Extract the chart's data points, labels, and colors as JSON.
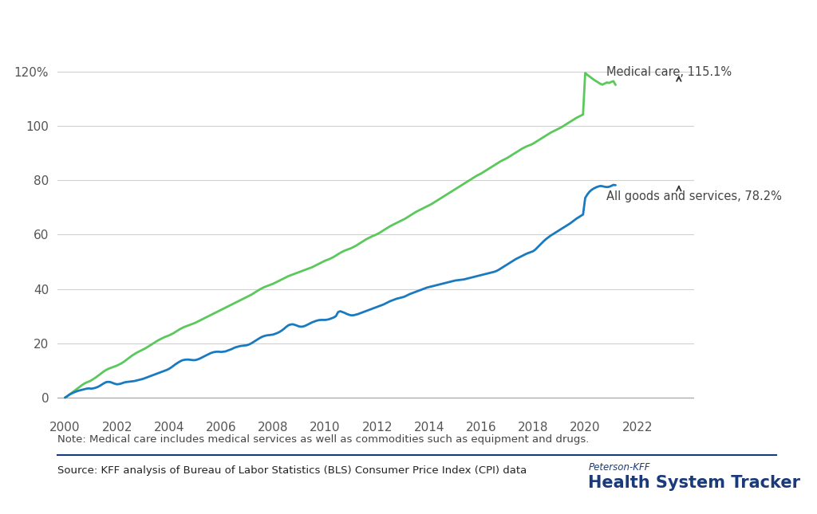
{
  "medical_care": [
    0.0,
    0.5,
    1.1,
    1.7,
    2.3,
    2.9,
    3.5,
    4.1,
    4.7,
    5.2,
    5.6,
    5.9,
    6.3,
    6.8,
    7.3,
    7.9,
    8.5,
    9.1,
    9.7,
    10.2,
    10.6,
    10.9,
    11.2,
    11.5,
    11.8,
    12.2,
    12.6,
    13.1,
    13.7,
    14.3,
    14.9,
    15.5,
    16.0,
    16.5,
    16.9,
    17.3,
    17.7,
    18.1,
    18.6,
    19.1,
    19.6,
    20.1,
    20.6,
    21.1,
    21.5,
    21.9,
    22.3,
    22.6,
    22.9,
    23.3,
    23.7,
    24.2,
    24.7,
    25.2,
    25.6,
    26.0,
    26.3,
    26.6,
    26.9,
    27.2,
    27.5,
    27.9,
    28.3,
    28.7,
    29.1,
    29.5,
    29.9,
    30.3,
    30.7,
    31.1,
    31.5,
    31.9,
    32.3,
    32.7,
    33.1,
    33.5,
    33.9,
    34.3,
    34.7,
    35.1,
    35.5,
    35.9,
    36.3,
    36.7,
    37.1,
    37.5,
    37.9,
    38.4,
    38.9,
    39.4,
    39.9,
    40.3,
    40.7,
    41.0,
    41.3,
    41.6,
    41.9,
    42.3,
    42.7,
    43.1,
    43.5,
    43.9,
    44.3,
    44.7,
    45.0,
    45.3,
    45.6,
    45.9,
    46.2,
    46.5,
    46.8,
    47.1,
    47.4,
    47.7,
    48.0,
    48.4,
    48.8,
    49.2,
    49.6,
    50.0,
    50.4,
    50.7,
    51.0,
    51.4,
    51.8,
    52.3,
    52.8,
    53.3,
    53.7,
    54.1,
    54.4,
    54.7,
    55.0,
    55.4,
    55.8,
    56.3,
    56.8,
    57.3,
    57.8,
    58.3,
    58.7,
    59.1,
    59.5,
    59.8,
    60.2,
    60.6,
    61.1,
    61.6,
    62.1,
    62.6,
    63.1,
    63.5,
    63.9,
    64.3,
    64.7,
    65.1,
    65.5,
    65.9,
    66.4,
    66.9,
    67.4,
    67.9,
    68.4,
    68.8,
    69.2,
    69.6,
    70.0,
    70.4,
    70.8,
    71.2,
    71.7,
    72.2,
    72.7,
    73.2,
    73.7,
    74.2,
    74.7,
    75.2,
    75.7,
    76.2,
    76.7,
    77.2,
    77.7,
    78.2,
    78.7,
    79.2,
    79.7,
    80.2,
    80.7,
    81.2,
    81.7,
    82.1,
    82.5,
    83.0,
    83.5,
    84.0,
    84.5,
    85.0,
    85.5,
    86.0,
    86.5,
    87.0,
    87.4,
    87.8,
    88.2,
    88.7,
    89.2,
    89.7,
    90.2,
    90.7,
    91.2,
    91.7,
    92.1,
    92.5,
    92.8,
    93.1,
    93.5,
    94.0,
    94.5,
    95.0,
    95.5,
    96.0,
    96.5,
    97.0,
    97.5,
    97.9,
    98.3,
    98.7,
    99.1,
    99.5,
    100.0,
    100.5,
    101.0,
    101.5,
    102.0,
    102.5,
    103.0,
    103.4,
    103.8,
    104.2,
    119.5,
    118.8,
    118.2,
    117.6,
    117.0,
    116.5,
    116.0,
    115.5,
    115.2,
    115.6,
    116.0,
    115.8,
    116.2,
    116.5,
    115.1
  ],
  "all_goods": [
    0.0,
    0.5,
    1.1,
    1.5,
    1.9,
    2.2,
    2.5,
    2.7,
    2.9,
    3.1,
    3.3,
    3.4,
    3.3,
    3.4,
    3.6,
    3.9,
    4.3,
    4.8,
    5.3,
    5.7,
    5.8,
    5.7,
    5.4,
    5.1,
    4.9,
    5.0,
    5.2,
    5.5,
    5.7,
    5.8,
    5.9,
    6.0,
    6.1,
    6.3,
    6.5,
    6.7,
    6.9,
    7.2,
    7.5,
    7.8,
    8.1,
    8.4,
    8.7,
    9.0,
    9.3,
    9.6,
    9.9,
    10.2,
    10.6,
    11.1,
    11.7,
    12.3,
    12.8,
    13.3,
    13.7,
    13.9,
    14.0,
    14.0,
    13.9,
    13.8,
    13.8,
    14.0,
    14.3,
    14.7,
    15.1,
    15.5,
    15.9,
    16.3,
    16.6,
    16.8,
    16.9,
    16.9,
    16.8,
    16.9,
    17.0,
    17.3,
    17.6,
    17.9,
    18.3,
    18.6,
    18.8,
    19.0,
    19.1,
    19.2,
    19.3,
    19.6,
    20.0,
    20.5,
    21.0,
    21.5,
    22.0,
    22.4,
    22.7,
    22.9,
    23.0,
    23.1,
    23.2,
    23.5,
    23.8,
    24.2,
    24.7,
    25.3,
    26.0,
    26.6,
    26.9,
    27.0,
    26.8,
    26.5,
    26.2,
    26.1,
    26.2,
    26.5,
    26.9,
    27.3,
    27.7,
    28.0,
    28.3,
    28.5,
    28.6,
    28.6,
    28.6,
    28.7,
    28.9,
    29.2,
    29.5,
    30.0,
    31.5,
    31.8,
    31.5,
    31.2,
    30.8,
    30.5,
    30.3,
    30.3,
    30.5,
    30.7,
    31.0,
    31.3,
    31.6,
    31.9,
    32.2,
    32.5,
    32.8,
    33.1,
    33.4,
    33.7,
    34.0,
    34.3,
    34.7,
    35.1,
    35.5,
    35.8,
    36.1,
    36.4,
    36.6,
    36.8,
    37.0,
    37.3,
    37.7,
    38.1,
    38.4,
    38.7,
    39.0,
    39.3,
    39.6,
    39.9,
    40.2,
    40.5,
    40.7,
    40.9,
    41.1,
    41.3,
    41.5,
    41.7,
    41.9,
    42.1,
    42.3,
    42.5,
    42.7,
    42.9,
    43.1,
    43.2,
    43.3,
    43.4,
    43.5,
    43.7,
    43.9,
    44.1,
    44.3,
    44.5,
    44.7,
    44.9,
    45.1,
    45.3,
    45.5,
    45.7,
    45.9,
    46.1,
    46.3,
    46.6,
    47.0,
    47.5,
    48.0,
    48.5,
    49.0,
    49.5,
    50.0,
    50.5,
    51.0,
    51.4,
    51.8,
    52.2,
    52.6,
    53.0,
    53.3,
    53.6,
    53.9,
    54.5,
    55.3,
    56.1,
    56.9,
    57.7,
    58.4,
    59.0,
    59.6,
    60.1,
    60.6,
    61.1,
    61.6,
    62.1,
    62.6,
    63.1,
    63.6,
    64.1,
    64.7,
    65.3,
    65.9,
    66.4,
    66.9,
    67.4,
    73.5,
    74.8,
    75.8,
    76.5,
    77.0,
    77.4,
    77.7,
    77.9,
    77.8,
    77.6,
    77.5,
    77.6,
    77.9,
    78.3,
    78.2
  ],
  "medical_care_label": "Medical care, 115.1%",
  "all_goods_label": "All goods and services, 78.2%",
  "medical_care_color": "#5bc85b",
  "all_goods_color": "#1a7abf",
  "yticks": [
    0,
    20,
    40,
    60,
    80,
    100,
    120
  ],
  "ytick_labels": [
    "0",
    "20",
    "40",
    "60",
    "80",
    "100",
    "120%"
  ],
  "xtick_years": [
    2000,
    2002,
    2004,
    2006,
    2008,
    2010,
    2012,
    2014,
    2016,
    2018,
    2020,
    2022
  ],
  "ylim": [
    -5,
    135
  ],
  "xlim": [
    1999.7,
    2024.2
  ],
  "note_text": "Note: Medical care includes medical services as well as commodities such as equipment and drugs.",
  "source_text": "Source: KFF analysis of Bureau of Labor Statistics (BLS) Consumer Price Index (CPI) data",
  "peterson_kff": "Peterson-KFF",
  "health_system_tracker": "Health System Tracker",
  "background_color": "#ffffff",
  "grid_color": "#d0d0d0",
  "line_width": 2.0
}
